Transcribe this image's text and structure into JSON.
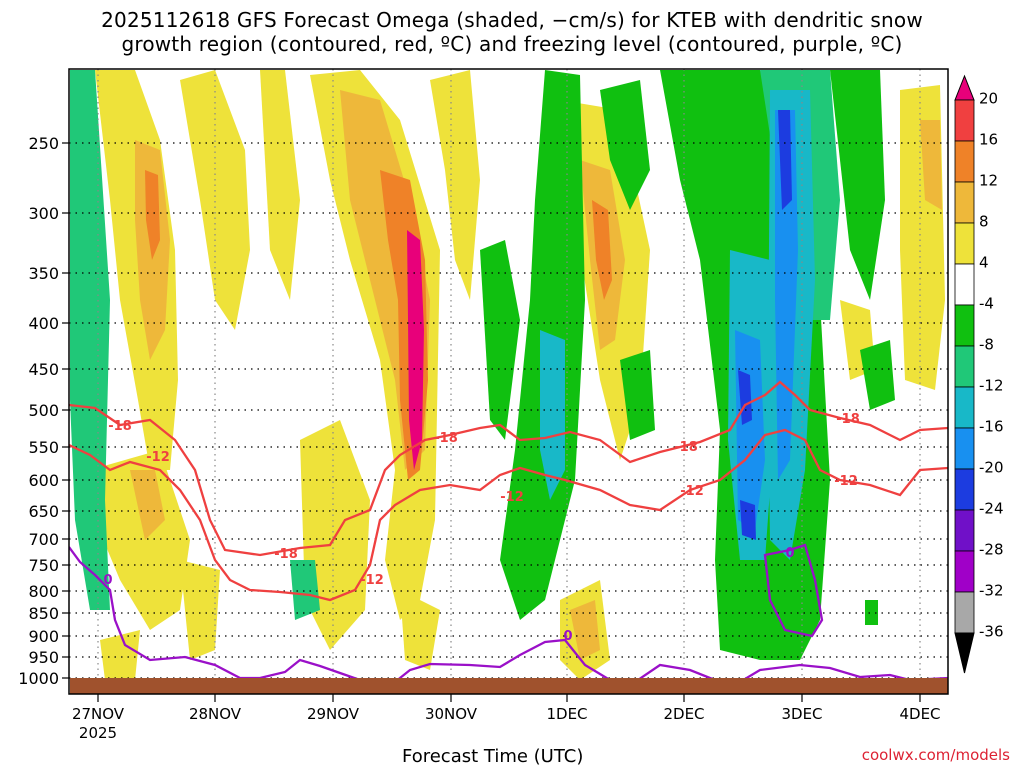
{
  "title_line1": "2025112618 GFS Forecast Omega (shaded, −cm/s) for KTEB with dendritic snow",
  "title_line2": "growth region (contoured, red, ºC) and freezing level (contoured, purple, ºC)",
  "x_axis_title": "Forecast Time (UTC)",
  "credit": "coolwx.com/models",
  "chart_data": {
    "type": "heatmap",
    "title": "2025112618 GFS Forecast Omega (shaded, −cm/s) for KTEB with dendritic snow growth region (contoured, red, ºC) and freezing level (contoured, purple, ºC)",
    "xlabel": "Forecast Time (UTC)",
    "ylabel": "",
    "y_ticks": [
      250,
      300,
      350,
      400,
      450,
      500,
      550,
      600,
      650,
      700,
      750,
      800,
      850,
      900,
      950,
      1000
    ],
    "y_range_hpa": [
      200,
      1025
    ],
    "x_ticks": [
      "27NOV",
      "28NOV",
      "29NOV",
      "30NOV",
      "1DEC",
      "2DEC",
      "3DEC",
      "4DEC"
    ],
    "x_year_label": "2025",
    "colorbar_labels": [
      20,
      16,
      12,
      8,
      4,
      -4,
      -8,
      -12,
      -16,
      -20,
      -24,
      -28,
      -32,
      -36
    ],
    "colorbar_colors": [
      "#e8007a",
      "#f04040",
      "#ef8228",
      "#eeb83a",
      "#eee23a",
      "#ffffff",
      "#10c010",
      "#20c878",
      "#18b8c8",
      "#1890f0",
      "#1c3ce0",
      "#7010c8",
      "#a000c8",
      "#a8a8a8",
      "#000000"
    ],
    "contour_labels": [
      {
        "label": "-18",
        "series": "dendritic snow growth region"
      },
      {
        "label": "-12",
        "series": "dendritic snow growth region"
      },
      {
        "label": "0",
        "series": "freezing level"
      }
    ],
    "contour_colors": {
      "dendritic snow growth region": "#ef4040",
      "freezing level": "#9a10c8"
    },
    "grid": true,
    "ground_color": "#a0522d"
  }
}
